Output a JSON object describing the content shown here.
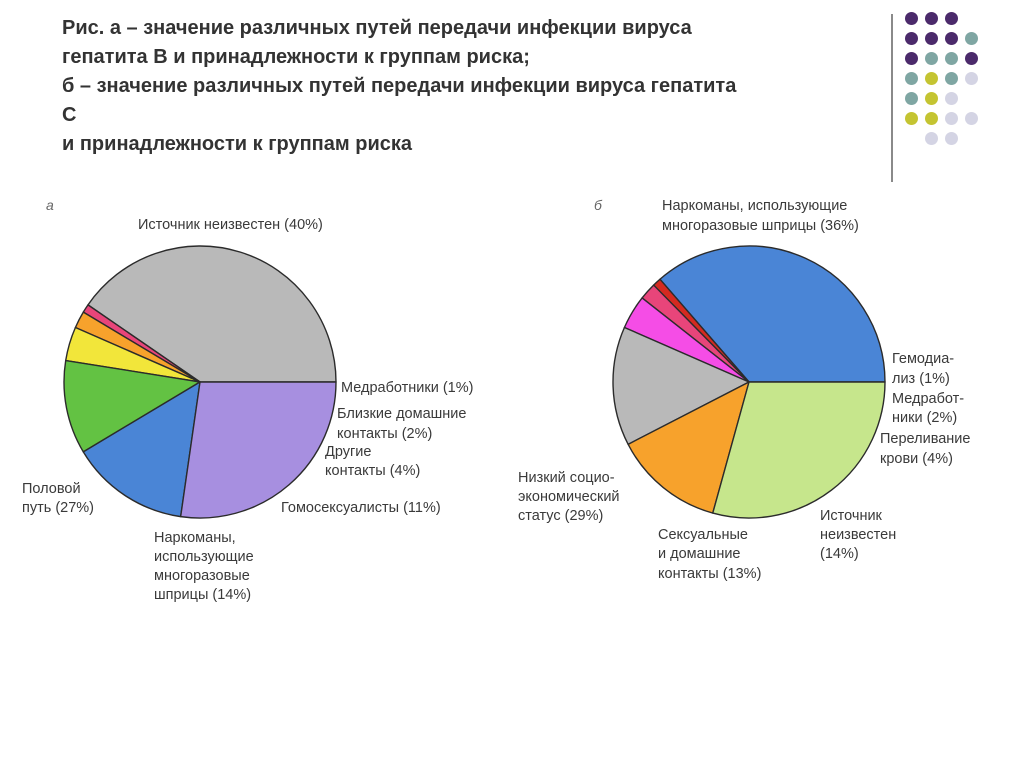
{
  "title": {
    "line1": "Рис. а – значение различных путей передачи инфекции вируса",
    "line2": "гепатита В и принадлежности к группам риска;",
    "line3": "б – значение различных путей передачи инфекции вируса гепатита",
    "line4": "С",
    "line5": "и принадлежности к группам риска"
  },
  "decor": {
    "dot_colors": {
      "purple": "#4b2a6b",
      "teal": "#7fa6a3",
      "lime": "#c4c432",
      "lavender": "#d4d4e4"
    },
    "dot_pattern": [
      [
        "purple",
        "purple",
        "purple",
        ""
      ],
      [
        "purple",
        "purple",
        "purple",
        "teal"
      ],
      [
        "purple",
        "teal",
        "teal",
        "purple"
      ],
      [
        "teal",
        "lime",
        "teal",
        "lavender"
      ],
      [
        "teal",
        "lime",
        "lavender",
        ""
      ],
      [
        "lime",
        "lime",
        "lavender",
        "lavender"
      ],
      [
        "",
        "lavender",
        "lavender",
        ""
      ]
    ]
  },
  "chart_data": [
    {
      "type": "pie",
      "panel_label": "а",
      "slices": [
        {
          "label": "Источник неизвестен (40%)",
          "value": 40,
          "color": "#b9b9b9"
        },
        {
          "label": "Медработники (1%)",
          "value": 1,
          "color": "#e8457a"
        },
        {
          "label": "Близкие домашние контакты (2%)",
          "value": 2,
          "color": "#f7a22c"
        },
        {
          "label": "Другие контакты (4%)",
          "value": 4,
          "color": "#f2e63a"
        },
        {
          "label": "Гомосексуалисты (11%)",
          "value": 11,
          "color": "#63c243"
        },
        {
          "label": "Наркоманы, использующие многоразовые шприцы (14%)",
          "value": 14,
          "color": "#4a85d6"
        },
        {
          "label": "Половой путь (27%)",
          "value": 27,
          "color": "#a78fe0"
        }
      ]
    },
    {
      "type": "pie",
      "panel_label": "б",
      "slices": [
        {
          "label": "Наркоманы, использующие многоразовые шприцы (36%)",
          "value": 36,
          "color": "#4a85d6"
        },
        {
          "label": "Гемодиализ (1%)",
          "value": 1,
          "color": "#d42a20"
        },
        {
          "label": "Медработники (2%)",
          "value": 2,
          "color": "#e8457a"
        },
        {
          "label": "Переливание крови (4%)",
          "value": 4,
          "color": "#f54de6"
        },
        {
          "label": "Источник неизвестен (14%)",
          "value": 14,
          "color": "#b9b9b9"
        },
        {
          "label": "Сексуальные и домашние контакты (13%)",
          "value": 13,
          "color": "#f7a22c"
        },
        {
          "label": "Низкий социо-экономический статус (29%)",
          "value": 29,
          "color": "#c6e68c"
        }
      ]
    }
  ],
  "labels_a": {
    "unknown": [
      "Источник неизвестен (40%)"
    ],
    "med": [
      "Медработники (1%)"
    ],
    "close": [
      "Близкие домашние",
      "контакты (2%)"
    ],
    "other": [
      "Другие",
      "контакты (4%)"
    ],
    "gay": [
      "Гомосексуалисты (11%)"
    ],
    "drug": [
      "Наркоманы,",
      "использующие",
      "многоразовые",
      "шприцы (14%)"
    ],
    "sexual": [
      "Половой",
      "путь (27%)"
    ]
  },
  "labels_b": {
    "drug": [
      "Наркоманы, использующие",
      "многоразовые шприцы (36%)"
    ],
    "dialysis": [
      "Гемодиа-",
      "лиз (1%)"
    ],
    "med": [
      "Медработ-",
      "ники (2%)"
    ],
    "blood": [
      "Переливание",
      "крови (4%)"
    ],
    "unknown": [
      "Источник",
      "неизвестен",
      "(14%)"
    ],
    "sexual": [
      "Сексуальные",
      "и домашние",
      "контакты (13%)"
    ],
    "lowses": [
      "Низкий социо-",
      "экономический",
      "статус (29%)"
    ]
  }
}
